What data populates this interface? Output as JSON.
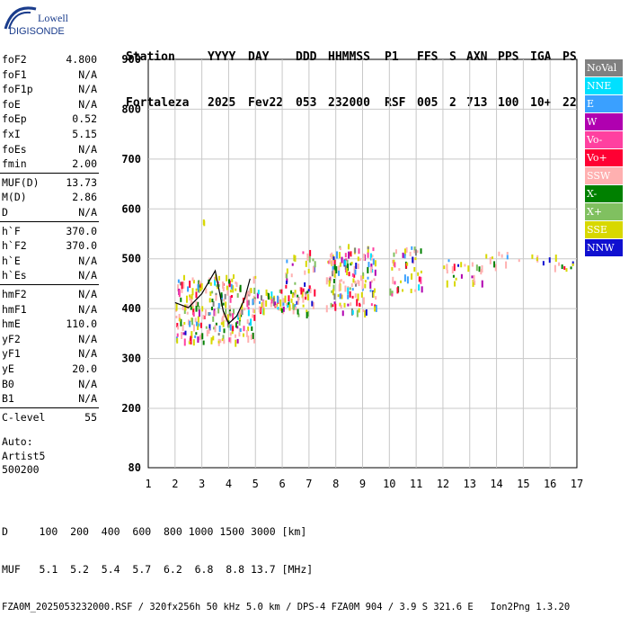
{
  "brand": {
    "line1": "Lowell",
    "line2": "DIGISONDE"
  },
  "header": {
    "labels": [
      "Station",
      "YYYY",
      "DAY",
      "DDD",
      "HHMMSS",
      "P1",
      "FFS",
      "S",
      "AXN",
      "PPS",
      "IGA",
      "PS"
    ],
    "values": [
      "Fortaleza",
      "2025",
      "Fev22",
      "053",
      "232000",
      "RSF",
      "005",
      "2",
      "713",
      "100",
      "10+",
      "22"
    ]
  },
  "params": [
    {
      "label": "foF2",
      "value": "4.800"
    },
    {
      "label": "foF1",
      "value": "N/A"
    },
    {
      "label": "foF1p",
      "value": "N/A"
    },
    {
      "label": "foE",
      "value": "N/A"
    },
    {
      "label": "foEp",
      "value": "0.52"
    },
    {
      "label": "fxI",
      "value": "5.15"
    },
    {
      "label": "foEs",
      "value": "N/A"
    },
    {
      "label": "fmin",
      "value": "2.00"
    },
    {
      "label": "MUF(D)",
      "value": "13.73"
    },
    {
      "label": "M(D)",
      "value": "2.86"
    },
    {
      "label": "D",
      "value": "N/A"
    },
    {
      "label": "h`F",
      "value": "370.0"
    },
    {
      "label": "h`F2",
      "value": "370.0"
    },
    {
      "label": "h`E",
      "value": "N/A"
    },
    {
      "label": "h`Es",
      "value": "N/A"
    },
    {
      "label": "hmF2",
      "value": "N/A"
    },
    {
      "label": "hmF1",
      "value": "N/A"
    },
    {
      "label": "hmE",
      "value": "110.0"
    },
    {
      "label": "yF2",
      "value": "N/A"
    },
    {
      "label": "yF1",
      "value": "N/A"
    },
    {
      "label": "yE",
      "value": "20.0"
    },
    {
      "label": "B0",
      "value": "N/A"
    },
    {
      "label": "B1",
      "value": "N/A"
    },
    {
      "label": "C-level",
      "value": "55"
    }
  ],
  "auto": {
    "line1": "Auto:",
    "line2": "Artist5",
    "line3": "500200"
  },
  "legend": [
    {
      "label": "NoVal",
      "color": "#808080"
    },
    {
      "label": "NNE",
      "color": "#00e0ff"
    },
    {
      "label": "E",
      "color": "#3aa0ff"
    },
    {
      "label": "W",
      "color": "#b000b0"
    },
    {
      "label": "Vo-",
      "color": "#ff40a0"
    },
    {
      "label": "Vo+",
      "color": "#ff0033"
    },
    {
      "label": "SSW",
      "color": "#ffb0b0"
    },
    {
      "label": "X-",
      "color": "#008000"
    },
    {
      "label": "X+",
      "color": "#80c060"
    },
    {
      "label": "SSE",
      "color": "#d8d800"
    },
    {
      "label": "NNW",
      "color": "#1010d0"
    }
  ],
  "footer": {
    "line1": "D     100  200  400  600  800 1000 1500 3000 [km]",
    "line2": "MUF   5.1  5.2  5.4  5.7  6.2  6.8  8.8 13.7 [MHz]",
    "line3": "FZA0M_2025053232000.RSF / 320fx256h 50 kHz 5.0 km / DPS-4 FZA0M 904 / 3.9 S 321.6 E   Ion2Png 1.3.20"
  },
  "chart_data": {
    "type": "scatter",
    "xlim": [
      1,
      17
    ],
    "ylim": [
      80,
      900
    ],
    "x_ticks": [
      "1",
      "2",
      "3",
      "4",
      "5",
      "6",
      "7",
      "8",
      "9",
      "10",
      "11",
      "12",
      "13",
      "14",
      "15",
      "16",
      "17"
    ],
    "y_ticks": [
      "80",
      "200",
      "300",
      "400",
      "500",
      "600",
      "700",
      "800",
      "900"
    ],
    "grid": true,
    "trace": [
      {
        "x": 2.0,
        "y": 412
      },
      {
        "x": 2.5,
        "y": 402
      },
      {
        "x": 3.0,
        "y": 430
      },
      {
        "x": 3.5,
        "y": 476
      },
      {
        "x": 3.8,
        "y": 395
      },
      {
        "x": 4.0,
        "y": 370
      },
      {
        "x": 4.3,
        "y": 385
      },
      {
        "x": 4.6,
        "y": 420
      },
      {
        "x": 4.8,
        "y": 460
      }
    ],
    "clusters": [
      {
        "x": [
          2.0,
          5.0
        ],
        "y": [
          335,
          470
        ],
        "n": 260
      },
      {
        "x": [
          5.0,
          6.5
        ],
        "y": [
          400,
          440
        ],
        "n": 60
      },
      {
        "x": [
          6.0,
          7.2
        ],
        "y": [
          390,
          520
        ],
        "n": 55
      },
      {
        "x": [
          7.6,
          9.5
        ],
        "y": [
          395,
          530
        ],
        "n": 150
      },
      {
        "x": [
          10.0,
          11.2
        ],
        "y": [
          435,
          525
        ],
        "n": 45
      },
      {
        "x": [
          12.0,
          13.5
        ],
        "y": [
          450,
          500
        ],
        "n": 25
      },
      {
        "x": [
          13.5,
          16.9
        ],
        "y": [
          475,
          515
        ],
        "n": 25
      },
      {
        "x": [
          3.0,
          3.1
        ],
        "y": [
          575,
          580
        ],
        "n": 2
      }
    ]
  }
}
